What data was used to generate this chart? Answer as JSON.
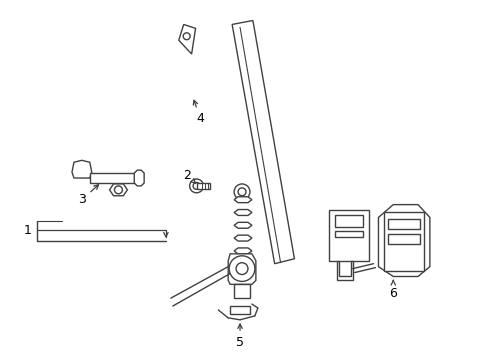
{
  "background_color": "#ffffff",
  "line_color": "#404040",
  "line_width": 1.0,
  "figsize": [
    4.89,
    3.6
  ],
  "dpi": 100
}
